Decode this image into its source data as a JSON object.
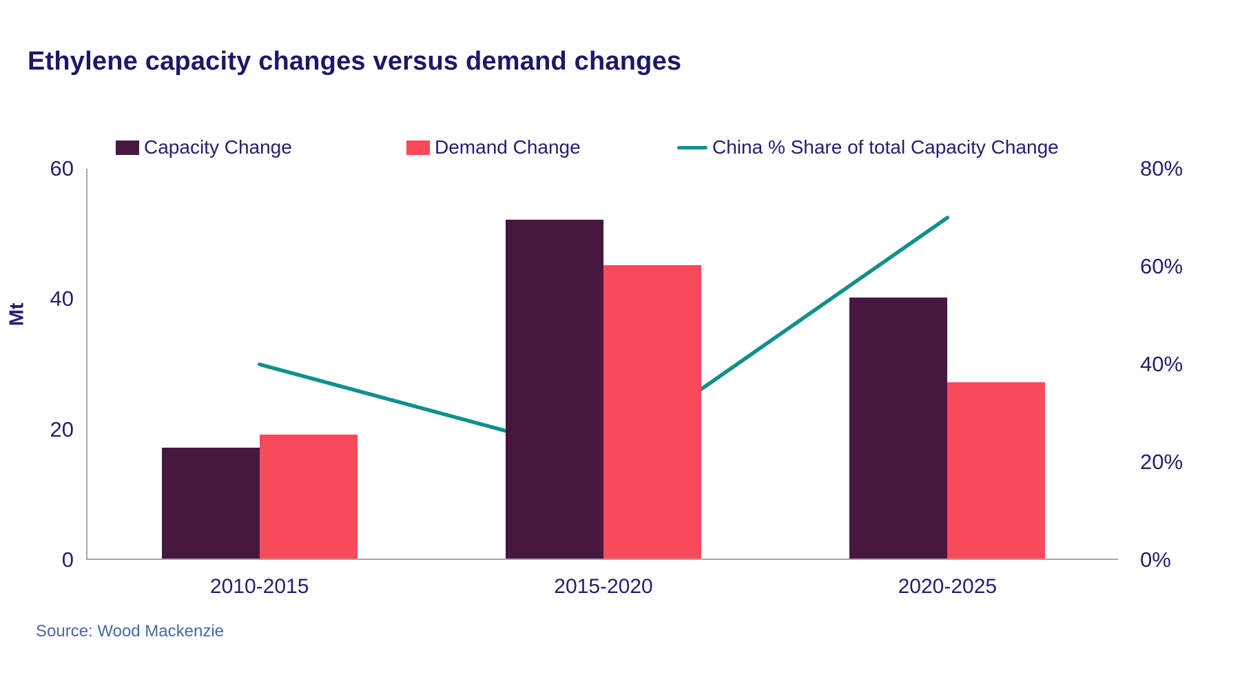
{
  "chart_data": {
    "type": "bar",
    "subtype": "grouped-bars-with-line-overlay",
    "title": "Ethylene capacity changes versus demand changes",
    "categories": [
      "2010-2015",
      "2015-2020",
      "2020-2025"
    ],
    "series": [
      {
        "name": "Capacity Change",
        "kind": "bar",
        "axis": "left",
        "color": "#471740",
        "values": [
          17,
          52,
          40
        ]
      },
      {
        "name": "Demand Change",
        "kind": "bar",
        "axis": "left",
        "color": "#f94a5b",
        "values": [
          19,
          45,
          27
        ]
      },
      {
        "name": "China % Share of total Capacity Change",
        "kind": "line",
        "axis": "right",
        "color": "#11908b",
        "values_percent": [
          40,
          21,
          70
        ]
      }
    ],
    "left_axis": {
      "label": "Mt",
      "ticks": [
        0,
        20,
        40,
        60
      ],
      "min": 0,
      "max": 60
    },
    "right_axis": {
      "tick_labels": [
        "0%",
        "20%",
        "40%",
        "60%",
        "80%"
      ],
      "min": 0,
      "max": 80
    },
    "legend_position": "top",
    "grid": false,
    "source": "Source: Wood Mackenzie",
    "colors": {
      "title_text": "#1c1868",
      "axis_text": "#24206e",
      "axis_line": "#a6a6a6",
      "source_text": "#4a67a4",
      "background": "#ffffff"
    }
  }
}
